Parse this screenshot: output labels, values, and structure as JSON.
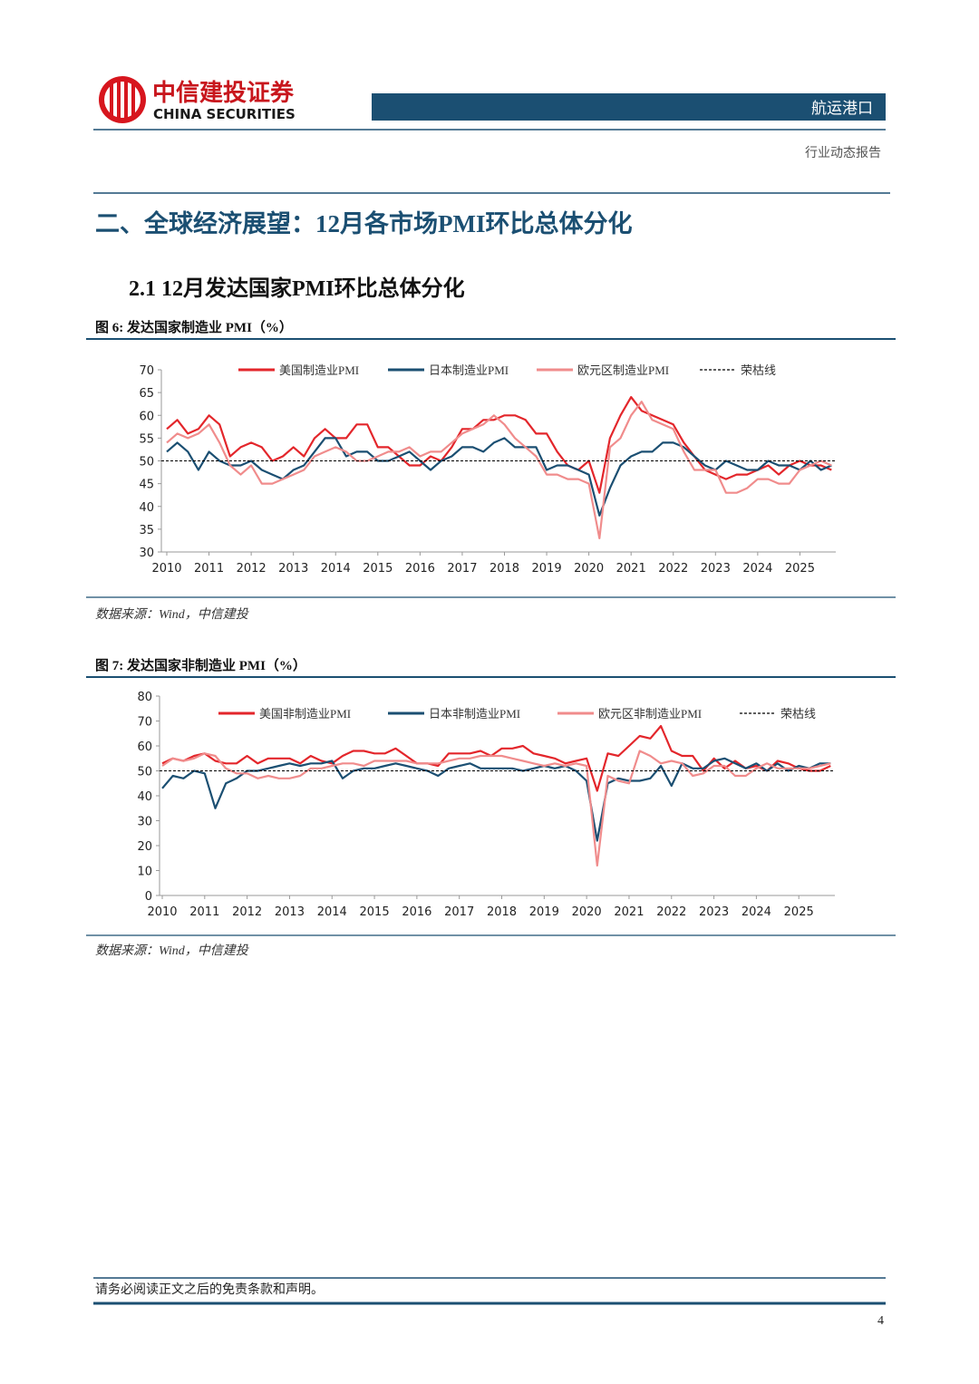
{
  "header": {
    "company": "中信建投证券",
    "company_en": "CHINA SECURITIES",
    "sector": "航运港口",
    "report_type": "行业动态报告"
  },
  "section_title": "二、全球经济展望：12月各市场PMI环比总体分化",
  "subsection_title": "2.1 12月发达国家PMI环比总体分化",
  "footer": {
    "disclaimer": "请务必阅读正文之后的免责条款和声明。",
    "page": "4"
  },
  "chart_data": [
    {
      "type": "line",
      "title": "图 6: 发达国家制造业 PMI（%）",
      "source": "数据来源：Wind，中信建投",
      "x": [
        2010,
        2010.25,
        2010.5,
        2010.75,
        2011,
        2011.25,
        2011.5,
        2011.75,
        2012,
        2012.25,
        2012.5,
        2012.75,
        2013,
        2013.25,
        2013.5,
        2013.75,
        2014,
        2014.25,
        2014.5,
        2014.75,
        2015,
        2015.25,
        2015.5,
        2015.75,
        2016,
        2016.25,
        2016.5,
        2016.75,
        2017,
        2017.25,
        2017.5,
        2017.75,
        2018,
        2018.25,
        2018.5,
        2018.75,
        2019,
        2019.25,
        2019.5,
        2019.75,
        2020,
        2020.25,
        2020.5,
        2020.75,
        2021,
        2021.25,
        2021.5,
        2021.75,
        2022,
        2022.25,
        2022.5,
        2022.75,
        2023,
        2023.25,
        2023.5,
        2023.75,
        2024,
        2024.25,
        2024.5,
        2024.75,
        2025,
        2025.25,
        2025.5,
        2025.75
      ],
      "series": [
        {
          "name": "美国制造业PMI",
          "color": "#e3262b",
          "values": [
            57,
            59,
            56,
            57,
            60,
            58,
            51,
            53,
            54,
            53,
            50,
            51,
            53,
            51,
            55,
            57,
            55,
            55,
            58,
            58,
            53,
            53,
            51,
            49,
            49,
            51,
            50,
            53,
            57,
            57,
            59,
            59,
            60,
            60,
            59,
            56,
            56,
            52,
            49,
            48,
            50,
            43,
            55,
            60,
            64,
            61,
            60,
            59,
            58,
            54,
            51,
            48,
            47,
            46,
            47,
            47,
            48,
            49,
            47,
            49,
            50,
            49,
            49,
            48
          ]
        },
        {
          "name": "日本制造业PMI",
          "color": "#1b4f72",
          "values": [
            52,
            54,
            52,
            48,
            52,
            50,
            49,
            49,
            50,
            48,
            47,
            46,
            48,
            49,
            52,
            55,
            55,
            51,
            52,
            52,
            50,
            50,
            51,
            52,
            50,
            48,
            50,
            51,
            53,
            53,
            52,
            54,
            55,
            53,
            53,
            53,
            48,
            49,
            49,
            48,
            47,
            38,
            44,
            49,
            51,
            52,
            52,
            54,
            54,
            53,
            51,
            49,
            48,
            50,
            49,
            48,
            48,
            50,
            49,
            49,
            48,
            50,
            48,
            49
          ]
        },
        {
          "name": "欧元区制造业PMI",
          "color": "#f08c8c",
          "values": [
            54,
            56,
            55,
            56,
            58,
            54,
            49,
            47,
            49,
            45,
            45,
            46,
            47,
            48,
            51,
            52,
            53,
            52,
            50,
            50,
            51,
            52,
            52,
            53,
            51,
            52,
            52,
            54,
            56,
            57,
            58,
            60,
            58,
            55,
            53,
            51,
            47,
            47,
            46,
            46,
            45,
            33,
            53,
            55,
            60,
            63,
            59,
            58,
            57,
            52,
            48,
            48,
            48,
            43,
            43,
            44,
            46,
            46,
            45,
            45,
            48,
            49,
            50,
            49
          ]
        }
      ],
      "reference_line": {
        "name": "荣枯线",
        "value": 50,
        "color": "#000000"
      },
      "xlim": [
        2010,
        2025.85
      ],
      "xticks": [
        2010,
        2011,
        2012,
        2013,
        2014,
        2015,
        2016,
        2017,
        2018,
        2019,
        2020,
        2021,
        2022,
        2023,
        2024,
        2025
      ],
      "ylim": [
        30,
        70
      ],
      "yticks": [
        30,
        35,
        40,
        45,
        50,
        55,
        60,
        65,
        70
      ]
    },
    {
      "type": "line",
      "title": "图 7: 发达国家非制造业 PMI（%）",
      "source": "数据来源：Wind，中信建投",
      "x": [
        2010,
        2010.25,
        2010.5,
        2010.75,
        2011,
        2011.25,
        2011.5,
        2011.75,
        2012,
        2012.25,
        2012.5,
        2012.75,
        2013,
        2013.25,
        2013.5,
        2013.75,
        2014,
        2014.25,
        2014.5,
        2014.75,
        2015,
        2015.25,
        2015.5,
        2015.75,
        2016,
        2016.25,
        2016.5,
        2016.75,
        2017,
        2017.25,
        2017.5,
        2017.75,
        2018,
        2018.25,
        2018.5,
        2018.75,
        2019,
        2019.25,
        2019.5,
        2019.75,
        2020,
        2020.25,
        2020.5,
        2020.75,
        2021,
        2021.25,
        2021.5,
        2021.75,
        2022,
        2022.25,
        2022.5,
        2022.75,
        2023,
        2023.25,
        2023.5,
        2023.75,
        2024,
        2024.25,
        2024.5,
        2024.75,
        2025,
        2025.25,
        2025.5,
        2025.75
      ],
      "series": [
        {
          "name": "美国非制造业PMI",
          "color": "#e3262b",
          "values": [
            53,
            55,
            54,
            56,
            57,
            54,
            53,
            53,
            56,
            53,
            55,
            55,
            55,
            53,
            56,
            54,
            53,
            56,
            58,
            58,
            57,
            57,
            59,
            56,
            53,
            53,
            52,
            57,
            57,
            57,
            58,
            56,
            59,
            59,
            60,
            57,
            56,
            55,
            53,
            54,
            55,
            42,
            57,
            56,
            60,
            64,
            63,
            68,
            58,
            56,
            56,
            50,
            55,
            51,
            54,
            51,
            52,
            50,
            54,
            53,
            51,
            50,
            50,
            52
          ]
        },
        {
          "name": "日本非制造业PMI",
          "color": "#1b4f72",
          "values": [
            43,
            48,
            47,
            50,
            49,
            35,
            45,
            47,
            50,
            50,
            51,
            52,
            53,
            52,
            53,
            53,
            54,
            47,
            50,
            51,
            51,
            52,
            53,
            52,
            51,
            50,
            48,
            51,
            52,
            53,
            51,
            51,
            51,
            51,
            50,
            51,
            52,
            51,
            52,
            50,
            46,
            22,
            45,
            47,
            46,
            46,
            47,
            52,
            44,
            53,
            51,
            51,
            54,
            55,
            53,
            51,
            53,
            50,
            53,
            50,
            52,
            51,
            53,
            53
          ]
        },
        {
          "name": "欧元区非制造业PMI",
          "color": "#f08c8c",
          "values": [
            52,
            55,
            54,
            55,
            57,
            56,
            51,
            49,
            49,
            47,
            48,
            47,
            47,
            48,
            51,
            51,
            52,
            53,
            53,
            52,
            54,
            54,
            54,
            54,
            53,
            53,
            53,
            54,
            55,
            55,
            56,
            56,
            56,
            55,
            54,
            53,
            52,
            53,
            52,
            53,
            52,
            12,
            48,
            46,
            45,
            58,
            56,
            53,
            54,
            53,
            48,
            49,
            52,
            52,
            48,
            48,
            51,
            53,
            51,
            51,
            51,
            51,
            52,
            53
          ]
        }
      ],
      "reference_line": {
        "name": "荣枯线",
        "value": 50,
        "color": "#000000"
      },
      "xlim": [
        2010,
        2025.85
      ],
      "xticks": [
        2010,
        2011,
        2012,
        2013,
        2014,
        2015,
        2016,
        2017,
        2018,
        2019,
        2020,
        2021,
        2022,
        2023,
        2024,
        2025
      ],
      "ylim": [
        0,
        80
      ],
      "yticks": [
        0,
        10,
        20,
        30,
        40,
        50,
        60,
        70,
        80
      ]
    }
  ]
}
